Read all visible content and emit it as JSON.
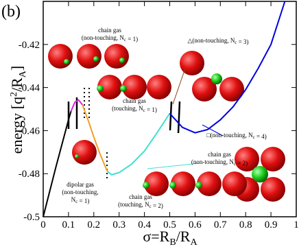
{
  "chart_data": {
    "type": "line",
    "panel_label": "(b)",
    "x_label_parts": [
      "σ=R",
      "B",
      "/R",
      "A"
    ],
    "y_label_parts": [
      "energy [q",
      "2",
      "/R",
      "A",
      "]"
    ],
    "xlim": [
      0,
      1
    ],
    "ylim": [
      -0.5,
      -0.4
    ],
    "xticks": [
      0,
      0.1,
      0.2,
      0.3,
      0.4,
      0.5,
      0.6,
      0.7,
      0.8,
      0.9,
      1
    ],
    "yticks": [
      -0.5,
      -0.48,
      -0.46,
      -0.44,
      -0.42
    ],
    "grid": false,
    "series": [
      {
        "color": "#000000",
        "x": [
          0,
          0.05,
          0.1,
          0.11
        ],
        "values": [
          -0.5,
          -0.477,
          -0.455,
          -0.451
        ]
      },
      {
        "color": "#e020e0",
        "x": [
          0.11,
          0.125,
          0.14,
          0.155
        ],
        "values": [
          -0.451,
          -0.4468,
          -0.4458,
          -0.448
        ]
      },
      {
        "color": "#f0a020",
        "x": [
          0.155,
          0.18,
          0.2,
          0.225,
          0.25,
          0.255
        ],
        "values": [
          -0.448,
          -0.456,
          -0.463,
          -0.471,
          -0.478,
          -0.479
        ]
      },
      {
        "color": "#40e0d0",
        "x": [
          0.255,
          0.27,
          0.3,
          0.35,
          0.4,
          0.45,
          0.5
        ],
        "values": [
          -0.479,
          -0.4805,
          -0.4795,
          -0.4755,
          -0.4695,
          -0.461,
          -0.452
        ]
      },
      {
        "color": "#0000e0",
        "x": [
          0.5,
          0.55,
          0.6,
          0.65,
          0.7,
          0.75,
          0.8,
          0.85,
          0.9,
          0.955
        ],
        "values": [
          -0.452,
          -0.4585,
          -0.461,
          -0.4595,
          -0.455,
          -0.449,
          -0.441,
          -0.431,
          -0.42,
          -0.4
        ]
      }
    ],
    "annotations": [
      {
        "lines": [
          [
            "chain gas"
          ],
          [
            "(non-touching, N",
            {
              "sub": "c"
            },
            " = 1)"
          ]
        ]
      },
      {
        "lines": [
          [
            "△(non-touching, N",
            {
              "sub": "c"
            },
            " = 3)"
          ]
        ]
      },
      {
        "lines": [
          [
            "chain gas"
          ],
          [
            "(touching, N",
            {
              "sub": "c"
            },
            " = 1)"
          ]
        ]
      },
      {
        "lines": [
          [
            "□(non-touching, N",
            {
              "sub": "c"
            },
            " = 4)"
          ]
        ]
      },
      {
        "lines": [
          [
            "chain gas"
          ],
          [
            "(non-touching, N",
            {
              "sub": "c"
            },
            " = 2)"
          ]
        ]
      },
      {
        "lines": [
          [
            "dipolar gas"
          ],
          [
            "(non-touching,"
          ],
          [
            "N",
            {
              "sub": "c"
            },
            " = 1)"
          ]
        ]
      },
      {
        "lines": [
          [
            "chain gas"
          ],
          [
            "(touching, N",
            {
              "sub": "c"
            },
            " = 2)"
          ]
        ]
      }
    ]
  }
}
